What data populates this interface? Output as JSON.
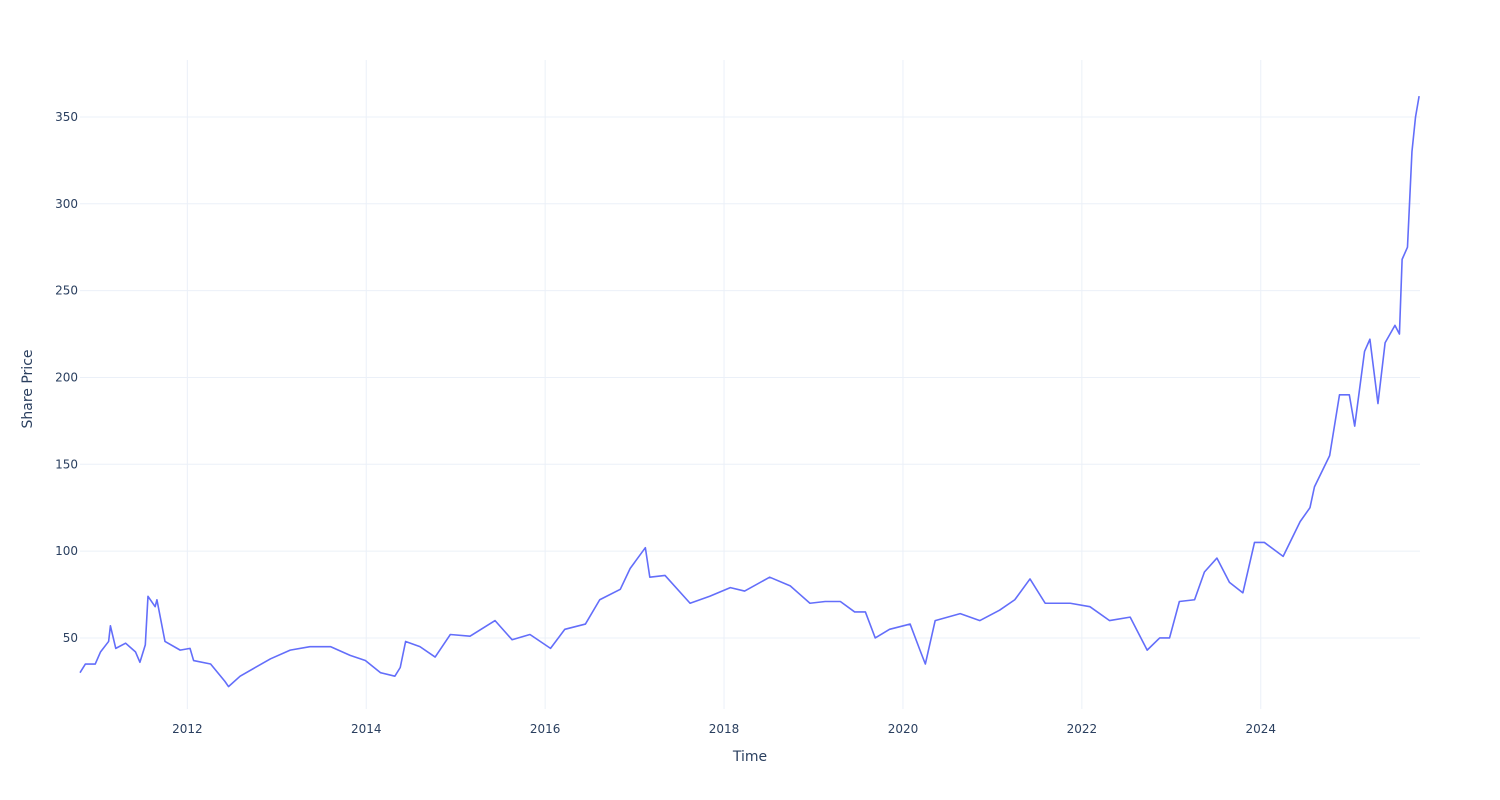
{
  "chart_data": {
    "type": "line",
    "x_label": "Time",
    "y_label": "Share Price",
    "xlim": [
      2010.8,
      2025.78
    ],
    "ylim": [
      9.1,
      382.8
    ],
    "xticks": [
      2012,
      2014,
      2016,
      2018,
      2020,
      2022,
      2024
    ],
    "yticks": [
      50,
      100,
      150,
      200,
      250,
      300,
      350
    ],
    "grid": true,
    "series": [
      {
        "name": "Share Price",
        "color": "#636efa",
        "x": [
          2010.8,
          2010.86,
          2010.97,
          2011.03,
          2011.12,
          2011.14,
          2011.2,
          2011.31,
          2011.42,
          2011.47,
          2011.53,
          2011.56,
          2011.64,
          2011.66,
          2011.75,
          2011.92,
          2012.03,
          2012.07,
          2012.26,
          2012.42,
          2012.46,
          2012.59,
          2012.76,
          2012.93,
          2013.15,
          2013.37,
          2013.6,
          2013.82,
          2013.99,
          2014.16,
          2014.32,
          2014.38,
          2014.44,
          2014.6,
          2014.77,
          2014.94,
          2015.16,
          2015.44,
          2015.63,
          2015.83,
          2016.06,
          2016.22,
          2016.45,
          2016.61,
          2016.84,
          2016.95,
          2017.12,
          2017.17,
          2017.34,
          2017.62,
          2017.84,
          2018.07,
          2018.23,
          2018.51,
          2018.74,
          2018.85,
          2018.96,
          2019.13,
          2019.3,
          2019.46,
          2019.58,
          2019.69,
          2019.85,
          2020.08,
          2020.19,
          2020.25,
          2020.36,
          2020.64,
          2020.86,
          2021.08,
          2021.25,
          2021.42,
          2021.59,
          2021.87,
          2022.09,
          2022.31,
          2022.54,
          2022.73,
          2022.87,
          2022.98,
          2023.09,
          2023.26,
          2023.37,
          2023.51,
          2023.65,
          2023.8,
          2023.93,
          2024.04,
          2024.25,
          2024.44,
          2024.55,
          2024.6,
          2024.77,
          2024.88,
          2024.99,
          2025.05,
          2025.16,
          2025.22,
          2025.31,
          2025.39,
          2025.5,
          2025.55,
          2025.58,
          2025.64,
          2025.69,
          2025.73,
          2025.77
        ],
        "values": [
          30,
          35,
          35,
          42,
          48,
          57,
          44,
          47,
          42,
          36,
          46,
          74,
          68,
          72,
          48,
          43,
          44,
          37,
          35,
          25,
          22,
          28,
          33,
          38,
          43,
          45,
          45,
          40,
          37,
          30,
          28,
          33,
          48,
          45,
          39,
          52,
          51,
          60,
          49,
          52,
          44,
          55,
          58,
          72,
          78,
          90,
          102,
          85,
          86,
          70,
          74,
          79,
          77,
          85,
          80,
          75,
          70,
          71,
          71,
          65,
          65,
          50,
          55,
          58,
          43,
          35,
          60,
          64,
          60,
          66,
          72,
          84,
          70,
          70,
          68,
          60,
          62,
          43,
          50,
          50,
          71,
          72,
          88,
          96,
          82,
          76,
          105,
          105,
          97,
          117,
          125,
          137,
          155,
          190,
          190,
          172,
          215,
          222,
          185,
          220,
          230,
          225,
          268,
          275,
          330,
          350,
          362
        ]
      }
    ]
  }
}
